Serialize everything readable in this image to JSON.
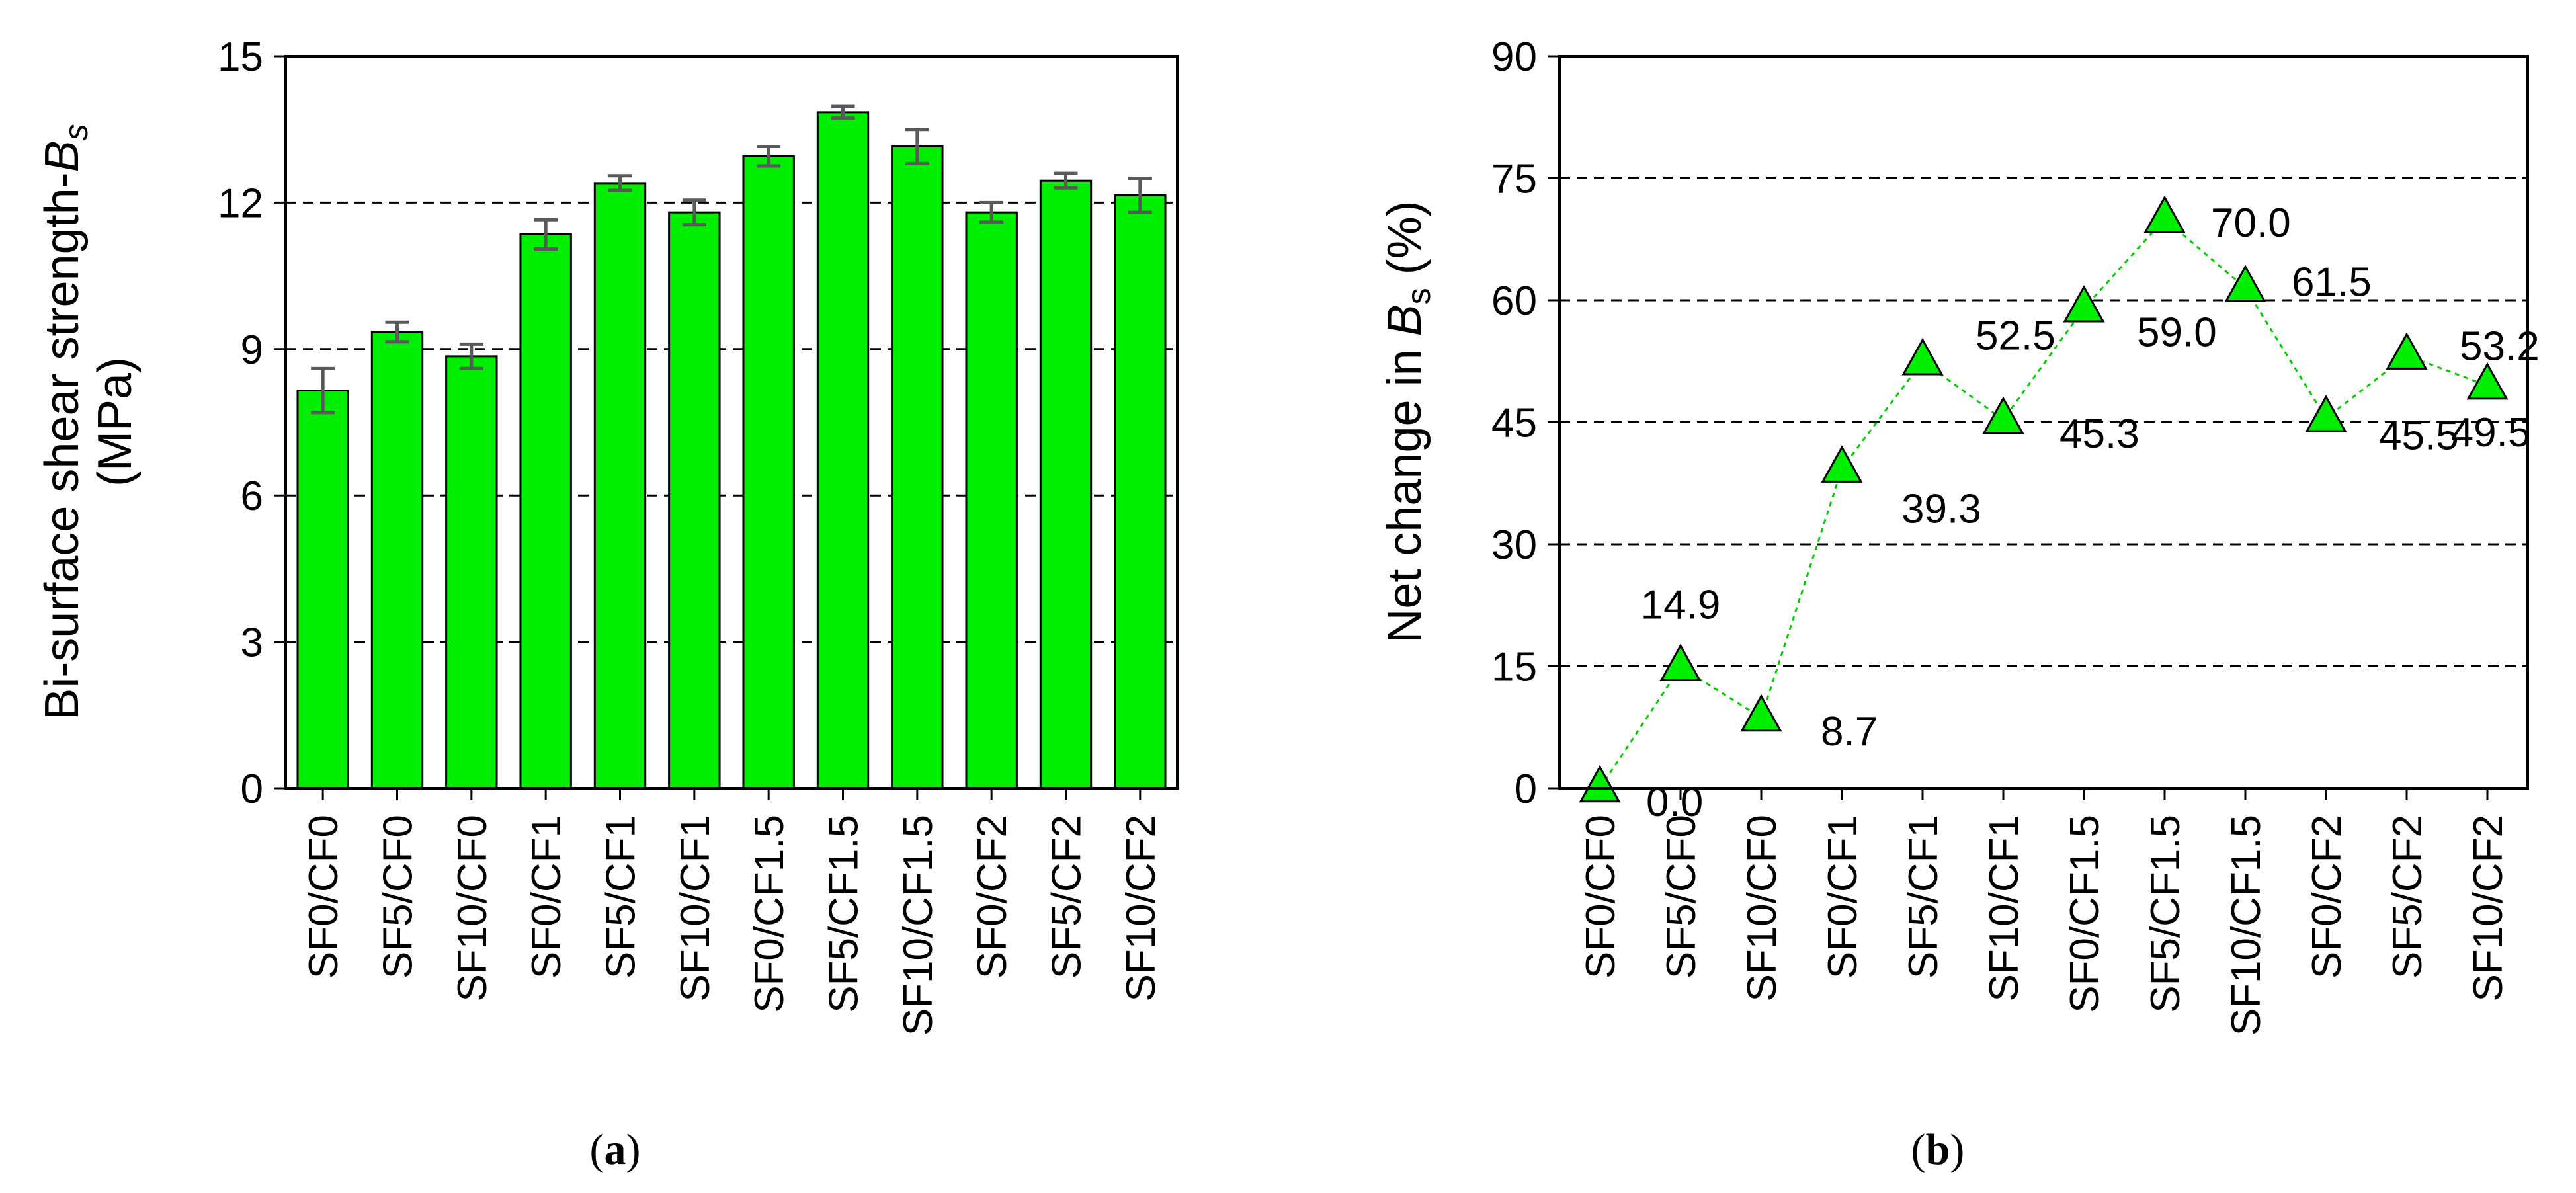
{
  "chart_data": [
    {
      "type": "bar",
      "panel_label": "a",
      "ylabel_main": "Bi-surface shear strength-",
      "ylabel_symbol": "B",
      "ylabel_subscript": "s",
      "ylabel_unit": "(MPa)",
      "xlabel": "",
      "categories": [
        "SF0/CF0",
        "SF5/CF0",
        "SF10/CF0",
        "SF0/CF1",
        "SF5/CF1",
        "SF10/CF1",
        "SF0/CF1.5",
        "SF5/CF1.5",
        "SF10/CF1.5",
        "SF0/CF2",
        "SF5/CF2",
        "SF10/CF2"
      ],
      "values": [
        8.15,
        9.35,
        8.85,
        11.35,
        12.4,
        11.8,
        12.95,
        13.85,
        13.15,
        11.8,
        12.45,
        12.15
      ],
      "errors": [
        0.45,
        0.2,
        0.25,
        0.3,
        0.15,
        0.25,
        0.2,
        0.12,
        0.35,
        0.2,
        0.15,
        0.35
      ],
      "ylim": [
        0,
        15
      ],
      "yticks": [
        "0",
        "3",
        "6",
        "9",
        "12",
        "15"
      ],
      "grid": "horizontal dashed",
      "bar_color": "#00ee00",
      "error_color": "#595959"
    },
    {
      "type": "line",
      "panel_label": "b",
      "ylabel_main": "Net change in ",
      "ylabel_symbol": "B",
      "ylabel_subscript": "s",
      "ylabel_unit": " (%)",
      "xlabel": "",
      "categories": [
        "SF0/CF0",
        "SF5/CF0",
        "SF10/CF0",
        "SF0/CF1",
        "SF5/CF1",
        "SF10/CF1",
        "SF0/CF1.5",
        "SF5/CF1.5",
        "SF10/CF1.5",
        "SF0/CF2",
        "SF5/CF2",
        "SF10/CF2"
      ],
      "values": [
        0.0,
        14.9,
        8.7,
        39.3,
        52.5,
        45.3,
        59.0,
        70.0,
        61.5,
        45.5,
        53.2,
        49.5
      ],
      "data_labels": [
        "0.0",
        "14.9",
        "8.7",
        "39.3",
        "52.5",
        "45.3",
        "59.0",
        "70.0",
        "61.5",
        "45.5",
        "53.2",
        "49.5"
      ],
      "ylim": [
        0,
        90
      ],
      "yticks": [
        "0",
        "15",
        "30",
        "45",
        "60",
        "75",
        "90"
      ],
      "grid": "horizontal dashed",
      "marker": "triangle",
      "marker_color": "#00ee00",
      "line_color": "#00cc00",
      "line_style": "dotted"
    }
  ]
}
